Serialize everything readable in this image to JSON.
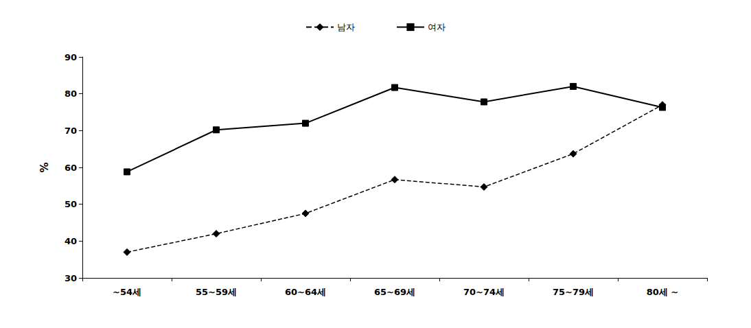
{
  "chart_data": {
    "type": "line",
    "categories": [
      "~54세",
      "55~59세",
      "60~64세",
      "65~69세",
      "70~74세",
      "75~79세",
      "80세 ~"
    ],
    "y_label": "%",
    "series": [
      {
        "name": "남자",
        "color": "#000000",
        "marker": "diamond",
        "line_style": "dashed",
        "values": [
          37,
          42,
          47.5,
          56.7,
          54.7,
          63.7,
          77
        ]
      },
      {
        "name": "여자",
        "color": "#000000",
        "marker": "square",
        "line_style": "solid",
        "values": [
          58.8,
          70.2,
          72,
          81.7,
          77.8,
          82,
          76.3
        ]
      }
    ],
    "ylim": [
      30,
      90
    ],
    "yticks": [
      30,
      40,
      50,
      60,
      70,
      80,
      90
    ],
    "grid": false,
    "legend": "top"
  }
}
